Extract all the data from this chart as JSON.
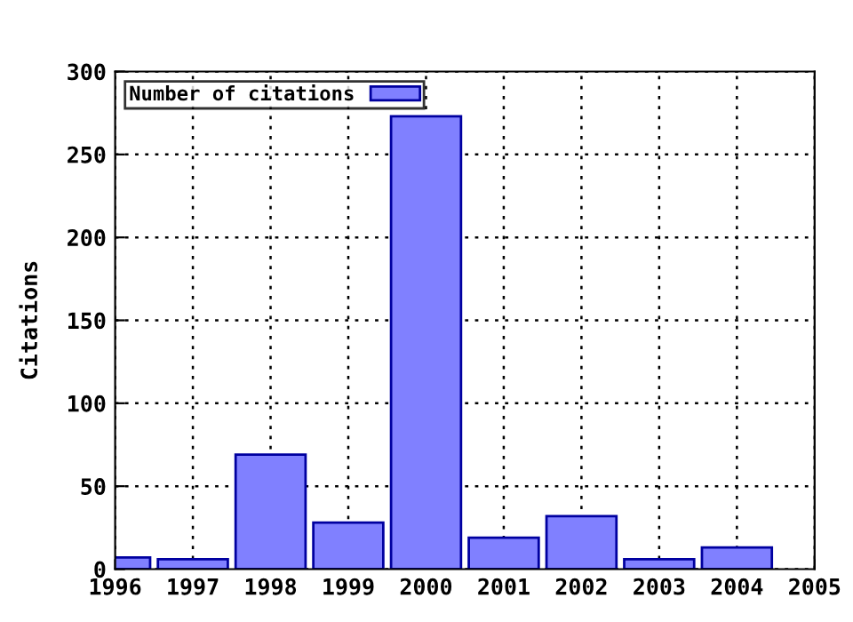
{
  "chart_data": {
    "type": "bar",
    "ylabel": "Citations",
    "x": [
      1996,
      1997,
      1998,
      1999,
      2000,
      2001,
      2002,
      2003,
      2004
    ],
    "series": [
      {
        "name": "Number of citations",
        "color": "#8080ff",
        "values": [
          7,
          6,
          69,
          28,
          273,
          19,
          32,
          6,
          13
        ]
      }
    ],
    "xlim": [
      1996,
      2005
    ],
    "xticks": [
      1996,
      1997,
      1998,
      1999,
      2000,
      2001,
      2002,
      2003,
      2004,
      2005
    ],
    "ylim": [
      0,
      300
    ],
    "yticks": [
      0,
      50,
      100,
      150,
      200,
      250,
      300
    ],
    "grid": true,
    "legend": "top left"
  }
}
